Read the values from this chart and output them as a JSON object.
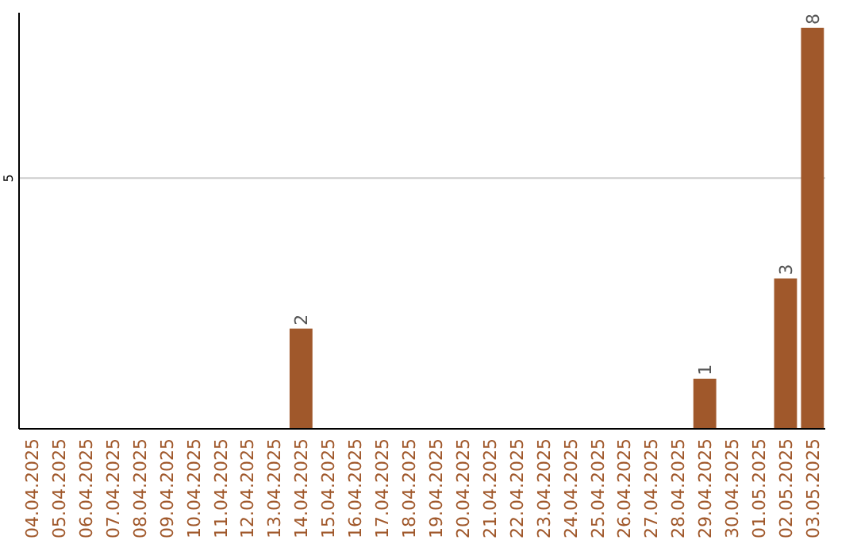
{
  "chart_data": {
    "type": "bar",
    "categories": [
      "04.04.2025",
      "05.04.2025",
      "06.04.2025",
      "07.04.2025",
      "08.04.2025",
      "09.04.2025",
      "10.04.2025",
      "11.04.2025",
      "12.04.2025",
      "13.04.2025",
      "14.04.2025",
      "15.04.2025",
      "16.04.2025",
      "17.04.2025",
      "18.04.2025",
      "19.04.2025",
      "20.04.2025",
      "21.04.2025",
      "22.04.2025",
      "23.04.2025",
      "24.04.2025",
      "25.04.2025",
      "26.04.2025",
      "27.04.2025",
      "28.04.2025",
      "29.04.2025",
      "30.04.2025",
      "01.05.2025",
      "02.05.2025",
      "03.05.2025"
    ],
    "values": [
      0,
      0,
      0,
      0,
      0,
      0,
      0,
      0,
      0,
      0,
      2,
      0,
      0,
      0,
      0,
      0,
      0,
      0,
      0,
      0,
      0,
      0,
      0,
      0,
      0,
      1,
      0,
      0,
      3,
      8
    ],
    "value_labels": [
      null,
      null,
      null,
      null,
      null,
      null,
      null,
      null,
      null,
      null,
      "2",
      null,
      null,
      null,
      null,
      null,
      null,
      null,
      null,
      null,
      null,
      null,
      null,
      null,
      null,
      "1",
      null,
      null,
      "3",
      "8"
    ],
    "color": "#a0582b",
    "ylim": [
      0,
      8.3
    ],
    "yticks": [
      5
    ],
    "grid": "y"
  }
}
